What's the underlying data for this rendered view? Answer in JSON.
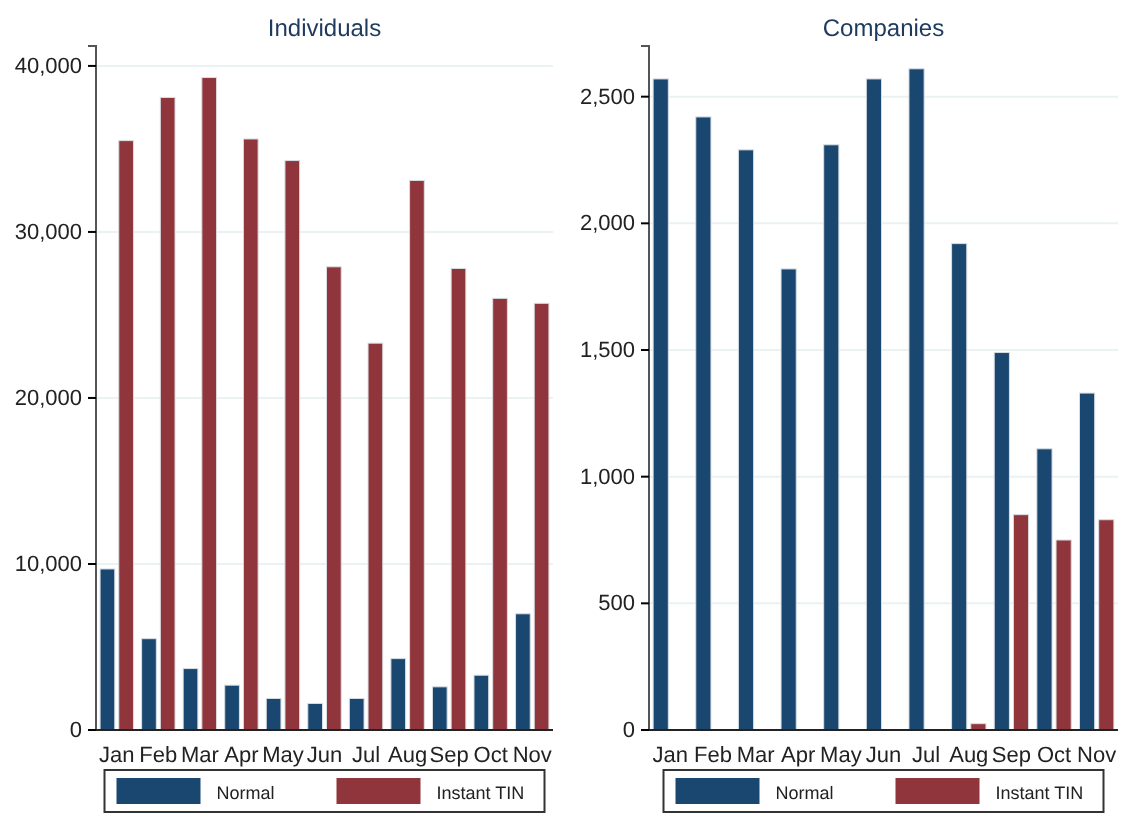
{
  "chart_data": [
    {
      "type": "bar",
      "title": "Individuals",
      "categories": [
        "Jan",
        "Feb",
        "Mar",
        "Apr",
        "May",
        "Jun",
        "Jul",
        "Aug",
        "Sep",
        "Oct",
        "Nov"
      ],
      "series": [
        {
          "name": "Normal",
          "color": "#1a476f",
          "values": [
            9700,
            5500,
            3700,
            2700,
            1900,
            1600,
            1900,
            4300,
            2600,
            3300,
            7000
          ]
        },
        {
          "name": "Instant TIN",
          "color": "#90353b",
          "values": [
            35500,
            38100,
            39300,
            35600,
            34300,
            27900,
            23300,
            33100,
            27800,
            26000,
            25700
          ]
        }
      ],
      "ylim": [
        0,
        41200
      ],
      "yticks": [
        {
          "value": 0,
          "label": "0"
        },
        {
          "value": 10000,
          "label": "10,000"
        },
        {
          "value": 20000,
          "label": "20,000"
        },
        {
          "value": 30000,
          "label": "30,000"
        },
        {
          "value": 40000,
          "label": "40,000"
        }
      ],
      "grid": "y",
      "legend": "bottom"
    },
    {
      "type": "bar",
      "title": "Companies",
      "categories": [
        "Jan",
        "Feb",
        "Mar",
        "Apr",
        "May",
        "Jun",
        "Jul",
        "Aug",
        "Sep",
        "Oct",
        "Nov"
      ],
      "series": [
        {
          "name": "Normal",
          "color": "#1a476f",
          "values": [
            2570,
            2420,
            2290,
            1820,
            2310,
            2570,
            2610,
            1920,
            1490,
            1110,
            1330
          ]
        },
        {
          "name": "Instant TIN",
          "color": "#90353b",
          "values": [
            0,
            0,
            0,
            null,
            0,
            null,
            null,
            25,
            850,
            750,
            830
          ]
        }
      ],
      "ylim": [
        0,
        2700
      ],
      "yticks": [
        {
          "value": 0,
          "label": "0"
        },
        {
          "value": 500,
          "label": "500"
        },
        {
          "value": 1000,
          "label": "1,000"
        },
        {
          "value": 1500,
          "label": "1,500"
        },
        {
          "value": 2000,
          "label": "2,000"
        },
        {
          "value": 2500,
          "label": "2,500"
        }
      ],
      "grid": "y",
      "legend": "bottom"
    }
  ]
}
